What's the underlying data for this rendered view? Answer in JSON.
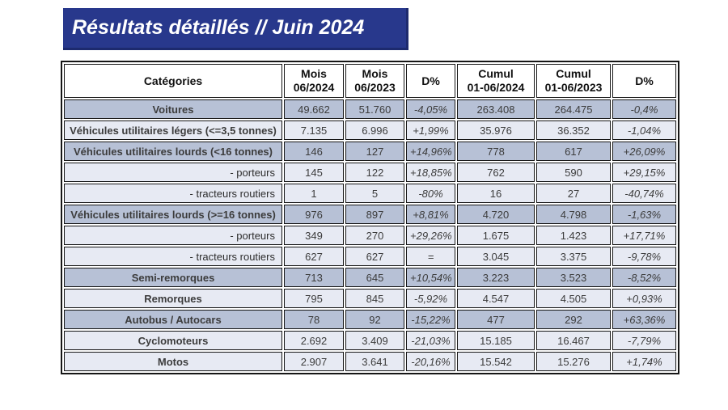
{
  "title": "Résultats détaillés // Juin 2024",
  "colors": {
    "banner_blue": "#28388c",
    "banner_edge": "#1d2a6e",
    "row_dark": "#b7c1d6",
    "row_light": "#e7eaf3",
    "border_black": "#161616",
    "text_white": "#ffffff"
  },
  "table": {
    "headers": [
      {
        "line1": "Catégories",
        "line2": ""
      },
      {
        "line1": "Mois",
        "line2": "06/2024"
      },
      {
        "line1": "Mois",
        "line2": "06/2023"
      },
      {
        "line1": "D%",
        "line2": ""
      },
      {
        "line1": "Cumul",
        "line2": "01-06/2024"
      },
      {
        "line1": "Cumul",
        "line2": "01-06/2023"
      },
      {
        "line1": "D%",
        "line2": ""
      }
    ],
    "rows": [
      {
        "category": "Voitures",
        "style": "main",
        "shade": "dark",
        "values": [
          "49.662",
          "51.760",
          "-4,05%",
          "263.408",
          "264.475",
          "-0,4%"
        ]
      },
      {
        "category": "Véhicules utilitaires légers (<=3,5 tonnes)",
        "style": "main",
        "shade": "light",
        "values": [
          "7.135",
          "6.996",
          "+1,99%",
          "35.976",
          "36.352",
          "-1,04%"
        ]
      },
      {
        "category": "Véhicules utilitaires lourds (<16 tonnes)",
        "style": "main",
        "shade": "dark",
        "values": [
          "146",
          "127",
          "+14,96%",
          "778",
          "617",
          "+26,09%"
        ]
      },
      {
        "category": "- porteurs",
        "style": "sub",
        "shade": "light",
        "values": [
          "145",
          "122",
          "+18,85%",
          "762",
          "590",
          "+29,15%"
        ]
      },
      {
        "category": "- tracteurs routiers",
        "style": "sub",
        "shade": "light",
        "values": [
          "1",
          "5",
          "-80%",
          "16",
          "27",
          "-40,74%"
        ]
      },
      {
        "category": "Véhicules utilitaires lourds (>=16 tonnes)",
        "style": "main",
        "shade": "dark",
        "values": [
          "976",
          "897",
          "+8,81%",
          "4.720",
          "4.798",
          "-1,63%"
        ]
      },
      {
        "category": "- porteurs",
        "style": "sub",
        "shade": "light",
        "values": [
          "349",
          "270",
          "+29,26%",
          "1.675",
          "1.423",
          "+17,71%"
        ]
      },
      {
        "category": "- tracteurs routiers",
        "style": "sub",
        "shade": "light",
        "values": [
          "627",
          "627",
          "=",
          "3.045",
          "3.375",
          "-9,78%"
        ]
      },
      {
        "category": "Semi-remorques",
        "style": "main",
        "shade": "dark",
        "values": [
          "713",
          "645",
          "+10,54%",
          "3.223",
          "3.523",
          "-8,52%"
        ]
      },
      {
        "category": "Remorques",
        "style": "main",
        "shade": "light",
        "values": [
          "795",
          "845",
          "-5,92%",
          "4.547",
          "4.505",
          "+0,93%"
        ]
      },
      {
        "category": "Autobus / Autocars",
        "style": "main",
        "shade": "dark",
        "values": [
          "78",
          "92",
          "-15,22%",
          "477",
          "292",
          "+63,36%"
        ]
      },
      {
        "category": "Cyclomoteurs",
        "style": "main",
        "shade": "light",
        "values": [
          "2.692",
          "3.409",
          "-21,03%",
          "15.185",
          "16.467",
          "-7,79%"
        ]
      },
      {
        "category": "Motos",
        "style": "main",
        "shade": "light",
        "values": [
          "2.907",
          "3.641",
          "-20,16%",
          "15.542",
          "15.276",
          "+1,74%"
        ]
      }
    ]
  }
}
